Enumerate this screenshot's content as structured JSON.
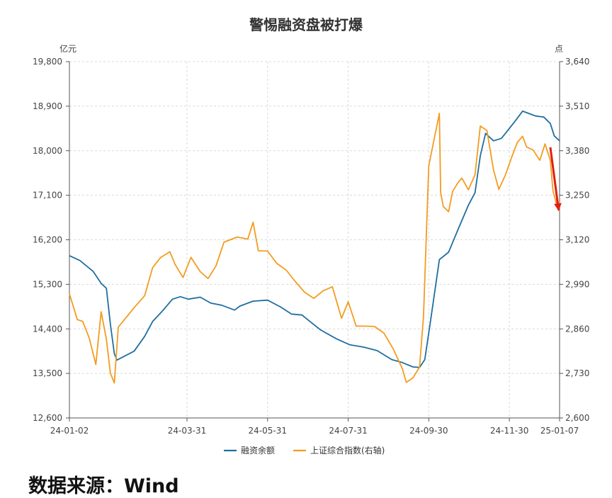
{
  "chart_data": {
    "type": "line",
    "title": "警惕融资盘被打爆",
    "left_unit": "亿元",
    "right_unit": "点",
    "x_tick_labels": [
      "24-01-02",
      "24-03-31",
      "24-05-31",
      "24-07-31",
      "24-09-30",
      "24-11-30",
      "25-01-07"
    ],
    "y_left": {
      "min": 12600,
      "max": 19800,
      "tick_labels": [
        "12,600",
        "13,500",
        "14,400",
        "15,300",
        "16,200",
        "17,100",
        "18,000",
        "18,900",
        "19,800"
      ]
    },
    "y_right": {
      "min": 2600,
      "max": 3640,
      "tick_labels": [
        "2,600",
        "2,730",
        "2,860",
        "2,990",
        "3,120",
        "3,250",
        "3,380",
        "3,510",
        "3,640"
      ]
    },
    "grid": true,
    "legend_position": "bottom",
    "series": [
      {
        "name": "融资余额",
        "axis": "left",
        "color": "#1f6f9f",
        "points": [
          [
            "2024-01-02",
            15880
          ],
          [
            "2024-01-10",
            15780
          ],
          [
            "2024-01-20",
            15560
          ],
          [
            "2024-01-26",
            15320
          ],
          [
            "2024-01-30",
            15220
          ],
          [
            "2024-02-02",
            14500
          ],
          [
            "2024-02-05",
            13900
          ],
          [
            "2024-02-07",
            13770
          ],
          [
            "2024-02-20",
            13950
          ],
          [
            "2024-02-28",
            14250
          ],
          [
            "2024-03-05",
            14550
          ],
          [
            "2024-03-12",
            14750
          ],
          [
            "2024-03-20",
            15000
          ],
          [
            "2024-03-26",
            15050
          ],
          [
            "2024-04-01",
            15000
          ],
          [
            "2024-04-10",
            15040
          ],
          [
            "2024-04-18",
            14920
          ],
          [
            "2024-04-26",
            14880
          ],
          [
            "2024-05-06",
            14780
          ],
          [
            "2024-05-10",
            14860
          ],
          [
            "2024-05-20",
            14960
          ],
          [
            "2024-05-31",
            14980
          ],
          [
            "2024-06-10",
            14840
          ],
          [
            "2024-06-18",
            14700
          ],
          [
            "2024-06-26",
            14680
          ],
          [
            "2024-07-03",
            14530
          ],
          [
            "2024-07-10",
            14380
          ],
          [
            "2024-07-22",
            14200
          ],
          [
            "2024-08-01",
            14080
          ],
          [
            "2024-08-12",
            14030
          ],
          [
            "2024-08-22",
            13960
          ],
          [
            "2024-09-02",
            13780
          ],
          [
            "2024-09-10",
            13720
          ],
          [
            "2024-09-18",
            13630
          ],
          [
            "2024-09-23",
            13620
          ],
          [
            "2024-09-27",
            13780
          ],
          [
            "2024-10-01",
            14500
          ],
          [
            "2024-10-08",
            15800
          ],
          [
            "2024-10-15",
            15950
          ],
          [
            "2024-10-22",
            16400
          ],
          [
            "2024-10-30",
            16900
          ],
          [
            "2024-11-04",
            17150
          ],
          [
            "2024-11-08",
            17900
          ],
          [
            "2024-11-12",
            18350
          ],
          [
            "2024-11-18",
            18200
          ],
          [
            "2024-11-24",
            18250
          ],
          [
            "2024-11-30",
            18450
          ],
          [
            "2024-12-05",
            18620
          ],
          [
            "2024-12-10",
            18800
          ],
          [
            "2024-12-15",
            18750
          ],
          [
            "2024-12-20",
            18700
          ],
          [
            "2024-12-26",
            18680
          ],
          [
            "2024-12-31",
            18550
          ],
          [
            "2025-01-03",
            18300
          ],
          [
            "2025-01-07",
            18200
          ]
        ]
      },
      {
        "name": "上证综合指数(右轴)",
        "axis": "right",
        "color": "#f39c1f",
        "points": [
          [
            "2024-01-02",
            2962
          ],
          [
            "2024-01-08",
            2887
          ],
          [
            "2024-01-12",
            2882
          ],
          [
            "2024-01-17",
            2833
          ],
          [
            "2024-01-22",
            2756
          ],
          [
            "2024-01-26",
            2910
          ],
          [
            "2024-01-30",
            2830
          ],
          [
            "2024-02-02",
            2731
          ],
          [
            "2024-02-05",
            2702
          ],
          [
            "2024-02-08",
            2865
          ],
          [
            "2024-02-20",
            2922
          ],
          [
            "2024-02-28",
            2957
          ],
          [
            "2024-03-05",
            3039
          ],
          [
            "2024-03-11",
            3068
          ],
          [
            "2024-03-18",
            3085
          ],
          [
            "2024-03-22",
            3048
          ],
          [
            "2024-03-28",
            3010
          ],
          [
            "2024-04-03",
            3069
          ],
          [
            "2024-04-10",
            3027
          ],
          [
            "2024-04-16",
            3007
          ],
          [
            "2024-04-22",
            3044
          ],
          [
            "2024-04-28",
            3113
          ],
          [
            "2024-05-08",
            3128
          ],
          [
            "2024-05-16",
            3122
          ],
          [
            "2024-05-20",
            3171
          ],
          [
            "2024-05-24",
            3088
          ],
          [
            "2024-05-31",
            3087
          ],
          [
            "2024-06-07",
            3051
          ],
          [
            "2024-06-14",
            3032
          ],
          [
            "2024-06-21",
            2998
          ],
          [
            "2024-06-28",
            2967
          ],
          [
            "2024-07-05",
            2949
          ],
          [
            "2024-07-12",
            2971
          ],
          [
            "2024-07-19",
            2983
          ],
          [
            "2024-07-26",
            2891
          ],
          [
            "2024-07-31",
            2939
          ],
          [
            "2024-08-06",
            2868
          ],
          [
            "2024-08-13",
            2868
          ],
          [
            "2024-08-20",
            2867
          ],
          [
            "2024-08-27",
            2848
          ],
          [
            "2024-09-03",
            2802
          ],
          [
            "2024-09-10",
            2744
          ],
          [
            "2024-09-13",
            2704
          ],
          [
            "2024-09-18",
            2717
          ],
          [
            "2024-09-23",
            2748
          ],
          [
            "2024-09-26",
            2897
          ],
          [
            "2024-09-30",
            3336
          ],
          [
            "2024-10-08",
            3489
          ],
          [
            "2024-10-09",
            3258
          ],
          [
            "2024-10-11",
            3217
          ],
          [
            "2024-10-15",
            3202
          ],
          [
            "2024-10-18",
            3261
          ],
          [
            "2024-10-22",
            3286
          ],
          [
            "2024-10-25",
            3300
          ],
          [
            "2024-10-30",
            3266
          ],
          [
            "2024-11-04",
            3310
          ],
          [
            "2024-11-08",
            3452
          ],
          [
            "2024-11-13",
            3439
          ],
          [
            "2024-11-18",
            3324
          ],
          [
            "2024-11-22",
            3267
          ],
          [
            "2024-11-27",
            3309
          ],
          [
            "2024-12-02",
            3364
          ],
          [
            "2024-12-06",
            3404
          ],
          [
            "2024-12-10",
            3422
          ],
          [
            "2024-12-13",
            3391
          ],
          [
            "2024-12-18",
            3382
          ],
          [
            "2024-12-23",
            3352
          ],
          [
            "2024-12-27",
            3400
          ],
          [
            "2024-12-31",
            3352
          ],
          [
            "2025-01-02",
            3262
          ],
          [
            "2025-01-06",
            3206
          ],
          [
            "2025-01-07",
            3230
          ]
        ]
      }
    ],
    "annotations": [
      {
        "type": "arrow",
        "color": "#e02010",
        "from": [
          "2024-12-31",
          3390
        ],
        "to": [
          "2025-01-06",
          3215
        ]
      }
    ]
  },
  "source_note": {
    "label": "数据来源：",
    "value": "Wind"
  }
}
